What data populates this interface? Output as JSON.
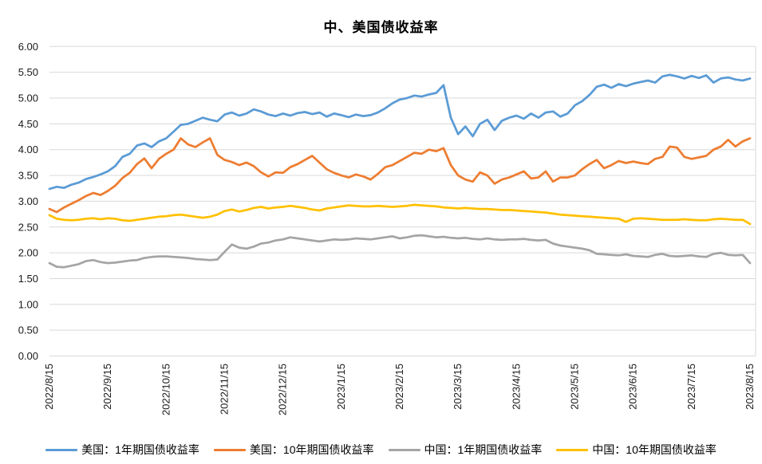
{
  "title": "中、美国债收益率",
  "chart_data": {
    "type": "line",
    "title": "中、美国债收益率",
    "ylim": [
      0.0,
      6.0
    ],
    "ytick_step": 0.5,
    "grid": "horizontal",
    "legend_position": "bottom",
    "y_ticks": [
      "0.00",
      "0.50",
      "1.00",
      "1.50",
      "2.00",
      "2.50",
      "3.00",
      "3.50",
      "4.00",
      "4.50",
      "5.00",
      "5.50",
      "6.00"
    ],
    "x_ticks": [
      "2022/8/15",
      "2022/9/15",
      "2022/10/15",
      "2022/11/15",
      "2022/12/15",
      "2023/1/15",
      "2023/2/15",
      "2023/3/15",
      "2023/4/15",
      "2023/5/15",
      "2023/6/15",
      "2023/7/15",
      "2023/8/15"
    ],
    "x_range_months": [
      0,
      12
    ],
    "series": [
      {
        "name": "美国：1年期国债收益率",
        "color": "#5B9BD5",
        "values": [
          3.24,
          3.28,
          3.26,
          3.32,
          3.36,
          3.43,
          3.47,
          3.52,
          3.58,
          3.68,
          3.86,
          3.92,
          4.08,
          4.12,
          4.05,
          4.16,
          4.22,
          4.35,
          4.48,
          4.5,
          4.56,
          4.62,
          4.58,
          4.55,
          4.68,
          4.72,
          4.66,
          4.7,
          4.78,
          4.74,
          4.68,
          4.65,
          4.7,
          4.66,
          4.71,
          4.73,
          4.69,
          4.72,
          4.64,
          4.7,
          4.67,
          4.63,
          4.68,
          4.65,
          4.67,
          4.72,
          4.8,
          4.9,
          4.97,
          5.0,
          5.05,
          5.03,
          5.07,
          5.1,
          5.25,
          4.62,
          4.3,
          4.45,
          4.26,
          4.5,
          4.58,
          4.38,
          4.56,
          4.62,
          4.66,
          4.6,
          4.7,
          4.62,
          4.72,
          4.74,
          4.64,
          4.7,
          4.86,
          4.94,
          5.06,
          5.22,
          5.26,
          5.2,
          5.27,
          5.23,
          5.28,
          5.31,
          5.34,
          5.3,
          5.42,
          5.45,
          5.42,
          5.38,
          5.43,
          5.39,
          5.44,
          5.3,
          5.38,
          5.4,
          5.36,
          5.34,
          5.38
        ]
      },
      {
        "name": "美国：10年期国债收益率",
        "color": "#ED7D31",
        "values": [
          2.85,
          2.79,
          2.88,
          2.95,
          3.02,
          3.1,
          3.16,
          3.12,
          3.2,
          3.3,
          3.45,
          3.55,
          3.72,
          3.83,
          3.64,
          3.82,
          3.92,
          4.0,
          4.22,
          4.1,
          4.05,
          4.14,
          4.22,
          3.9,
          3.8,
          3.76,
          3.7,
          3.75,
          3.68,
          3.56,
          3.48,
          3.56,
          3.55,
          3.66,
          3.72,
          3.8,
          3.88,
          3.75,
          3.62,
          3.55,
          3.5,
          3.46,
          3.52,
          3.48,
          3.42,
          3.53,
          3.66,
          3.7,
          3.78,
          3.86,
          3.94,
          3.92,
          4.0,
          3.97,
          4.03,
          3.7,
          3.5,
          3.42,
          3.38,
          3.56,
          3.5,
          3.34,
          3.42,
          3.46,
          3.52,
          3.58,
          3.44,
          3.46,
          3.58,
          3.38,
          3.46,
          3.46,
          3.5,
          3.62,
          3.72,
          3.8,
          3.64,
          3.7,
          3.78,
          3.74,
          3.77,
          3.74,
          3.72,
          3.82,
          3.86,
          4.06,
          4.04,
          3.86,
          3.82,
          3.85,
          3.88,
          4.0,
          4.06,
          4.19,
          4.06,
          4.16,
          4.22
        ]
      },
      {
        "name": "中国：1年期国债收益率",
        "color": "#A5A5A5",
        "values": [
          1.8,
          1.73,
          1.72,
          1.75,
          1.78,
          1.84,
          1.86,
          1.82,
          1.8,
          1.81,
          1.83,
          1.85,
          1.86,
          1.9,
          1.92,
          1.93,
          1.93,
          1.92,
          1.91,
          1.9,
          1.88,
          1.87,
          1.86,
          1.87,
          2.02,
          2.16,
          2.1,
          2.08,
          2.12,
          2.18,
          2.2,
          2.24,
          2.26,
          2.3,
          2.28,
          2.26,
          2.24,
          2.22,
          2.24,
          2.26,
          2.25,
          2.26,
          2.28,
          2.27,
          2.26,
          2.28,
          2.3,
          2.32,
          2.28,
          2.3,
          2.33,
          2.34,
          2.32,
          2.3,
          2.31,
          2.29,
          2.28,
          2.29,
          2.27,
          2.26,
          2.28,
          2.26,
          2.25,
          2.26,
          2.26,
          2.27,
          2.25,
          2.24,
          2.25,
          2.18,
          2.14,
          2.12,
          2.1,
          2.08,
          2.05,
          1.98,
          1.97,
          1.96,
          1.95,
          1.97,
          1.94,
          1.93,
          1.92,
          1.96,
          1.98,
          1.94,
          1.93,
          1.94,
          1.95,
          1.93,
          1.92,
          1.98,
          2.0,
          1.96,
          1.95,
          1.96,
          1.8
        ]
      },
      {
        "name": "中国：10年期国债收益率",
        "color": "#FFC000",
        "values": [
          2.73,
          2.66,
          2.64,
          2.63,
          2.64,
          2.66,
          2.67,
          2.65,
          2.67,
          2.66,
          2.63,
          2.62,
          2.64,
          2.66,
          2.68,
          2.7,
          2.71,
          2.73,
          2.74,
          2.72,
          2.7,
          2.68,
          2.7,
          2.74,
          2.81,
          2.84,
          2.8,
          2.83,
          2.87,
          2.89,
          2.86,
          2.88,
          2.89,
          2.91,
          2.89,
          2.87,
          2.84,
          2.82,
          2.86,
          2.88,
          2.9,
          2.92,
          2.91,
          2.9,
          2.9,
          2.91,
          2.9,
          2.89,
          2.9,
          2.91,
          2.93,
          2.92,
          2.91,
          2.9,
          2.88,
          2.87,
          2.86,
          2.87,
          2.86,
          2.85,
          2.85,
          2.84,
          2.83,
          2.83,
          2.82,
          2.81,
          2.8,
          2.79,
          2.78,
          2.76,
          2.74,
          2.73,
          2.72,
          2.71,
          2.7,
          2.69,
          2.68,
          2.67,
          2.66,
          2.6,
          2.66,
          2.67,
          2.66,
          2.65,
          2.64,
          2.64,
          2.64,
          2.65,
          2.64,
          2.63,
          2.63,
          2.65,
          2.66,
          2.65,
          2.64,
          2.64,
          2.56
        ]
      }
    ],
    "grid_color": "#D9D9D9"
  }
}
